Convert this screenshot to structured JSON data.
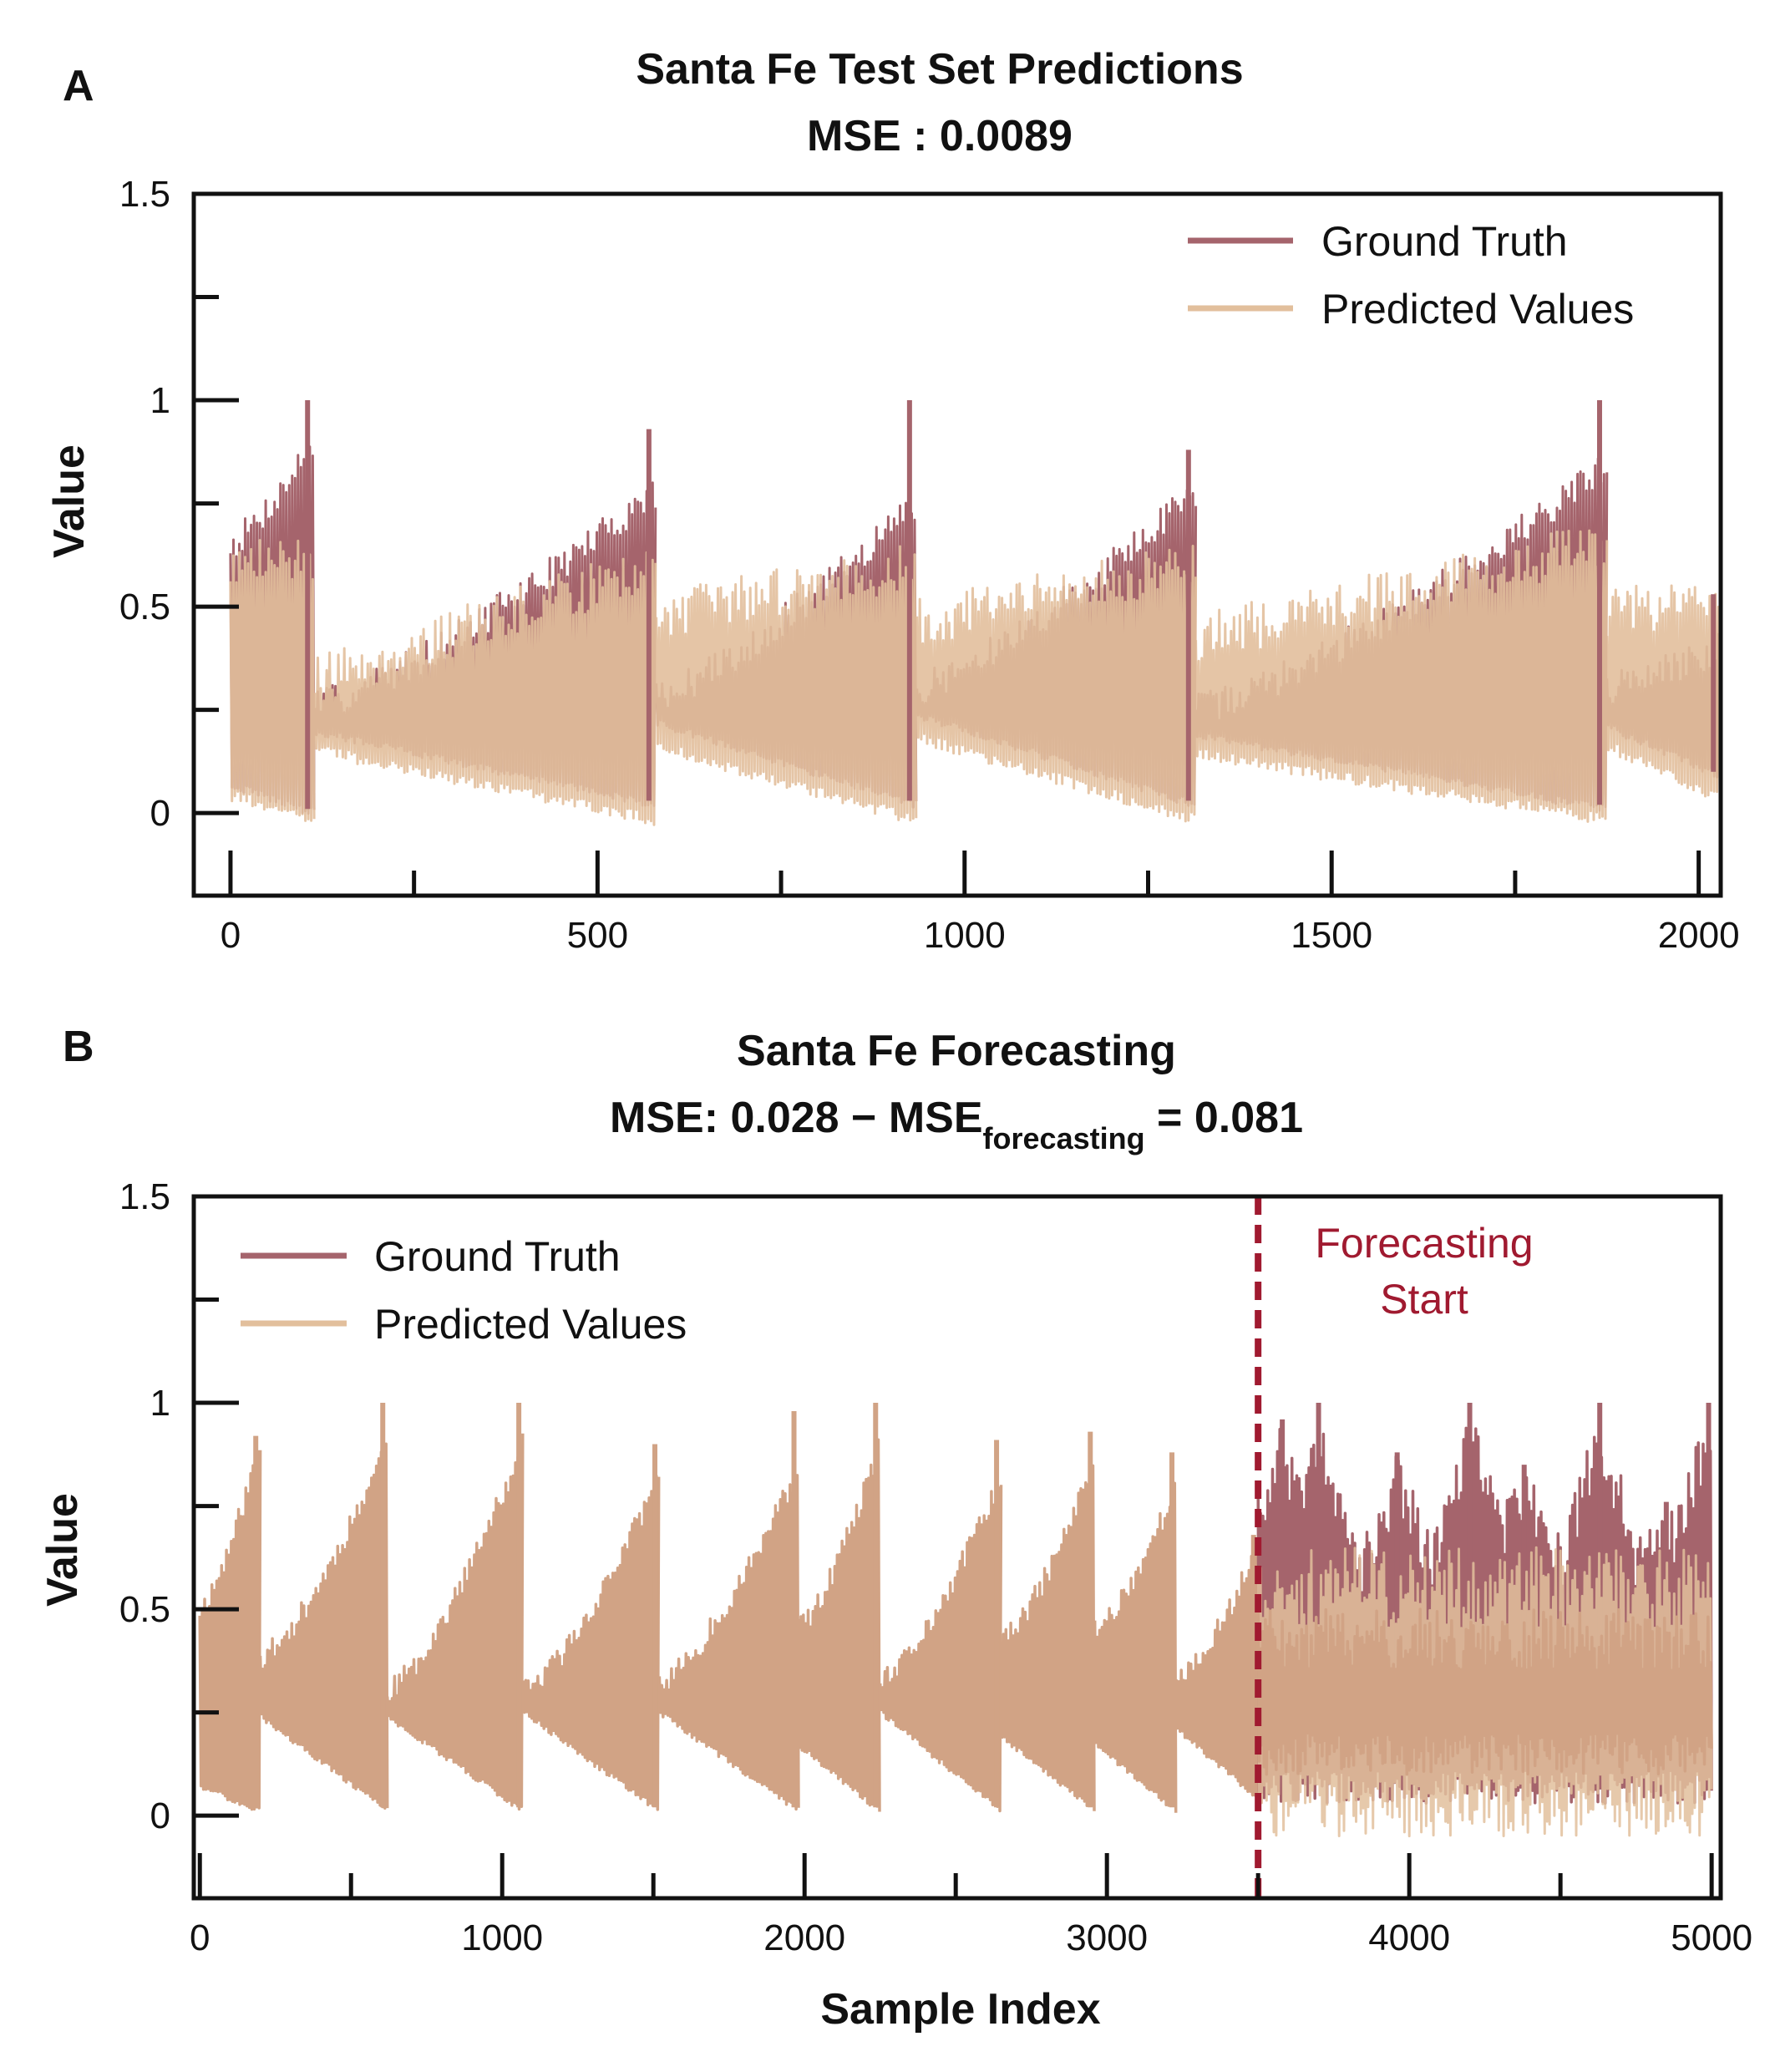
{
  "colors": {
    "ground_truth": "#a5646c",
    "predicted": "#e2bf9c",
    "overlap": "#d1a385",
    "forecast_line": "#a01a30",
    "axis": "#111111"
  },
  "chart_data": [
    {
      "panel": "A",
      "type": "line",
      "title": "Santa Fe Test Set Predictions",
      "subtitle": "MSE : 0.0089",
      "xlabel": "",
      "ylabel": "Value",
      "xlim": [
        -50,
        2030
      ],
      "ylim": [
        -0.2,
        1.5
      ],
      "xticks": [
        0,
        500,
        1000,
        1500,
        2000
      ],
      "xtick_labels": [
        "0",
        "500",
        "1000",
        "1500",
        "2000"
      ],
      "yticks": [
        0,
        0.5,
        1,
        1.5
      ],
      "ytick_labels": [
        "0",
        "0.5",
        "1",
        "1.5"
      ],
      "legend": "top-right",
      "grid": false,
      "series": [
        {
          "name": "Ground Truth",
          "kind": "ground_truth"
        },
        {
          "name": "Predicted Values",
          "kind": "predicted"
        }
      ],
      "n_samples": 2030,
      "collapse_points": [
        115,
        580,
        935,
        1315,
        1875
      ],
      "segment_envelopes": [
        {
          "x": [
            0,
            115
          ],
          "gt_peak": [
            0.65,
            0.9
          ],
          "gt_trough": [
            0.08,
            0.01
          ],
          "pred_peak": [
            0.6,
            0.62
          ],
          "pred_trough": [
            0.06,
            0.0
          ],
          "max": 1.0
        },
        {
          "x": [
            115,
            580
          ],
          "gt_peak": [
            0.26,
            0.78
          ],
          "gt_trough": [
            0.21,
            0.03
          ],
          "pred_peak": [
            0.32,
            0.6
          ],
          "pred_trough": [
            0.17,
            0.0
          ],
          "max": 0.93
        },
        {
          "x": [
            580,
            935
          ],
          "gt_peak": [
            0.28,
            0.75
          ],
          "gt_trough": [
            0.23,
            0.03
          ],
          "pred_peak": [
            0.48,
            0.6
          ],
          "pred_trough": [
            0.18,
            0.0
          ],
          "max": 1.0
        },
        {
          "x": [
            935,
            1315
          ],
          "gt_peak": [
            0.3,
            0.78
          ],
          "gt_trough": [
            0.25,
            0.03
          ],
          "pred_peak": [
            0.46,
            0.6
          ],
          "pred_trough": [
            0.2,
            0.0
          ],
          "max": 0.88
        },
        {
          "x": [
            1315,
            1875
          ],
          "gt_peak": [
            0.25,
            0.84
          ],
          "gt_trough": [
            0.2,
            0.02
          ],
          "pred_peak": [
            0.42,
            0.65
          ],
          "pred_trough": [
            0.16,
            0.0
          ],
          "max": 1.0
        },
        {
          "x": [
            1875,
            2030
          ],
          "gt_peak": [
            0.3,
            0.4
          ],
          "gt_trough": [
            0.22,
            0.1
          ],
          "pred_peak": [
            0.48,
            0.52
          ],
          "pred_trough": [
            0.18,
            0.05
          ],
          "max": 0.53
        }
      ]
    },
    {
      "panel": "B",
      "type": "line",
      "title": "Santa Fe Forecasting",
      "subtitle_prefix": "MSE: 0.028 − MSE",
      "subtitle_sub": "forecasting",
      "subtitle_suffix": " = 0.081",
      "xlabel": "Sample Index",
      "ylabel": "Value",
      "xlim": [
        -20,
        5030
      ],
      "ylim": [
        -0.2,
        1.5
      ],
      "xticks": [
        0,
        1000,
        2000,
        3000,
        4000,
        5000
      ],
      "xtick_labels": [
        "0",
        "1000",
        "2000",
        "3000",
        "4000",
        "5000"
      ],
      "yticks": [
        0,
        0.5,
        1,
        1.5
      ],
      "ytick_labels": [
        "0",
        "0.5",
        "1",
        "1.5"
      ],
      "legend": "top-left",
      "grid": false,
      "series": [
        {
          "name": "Ground Truth",
          "kind": "ground_truth"
        },
        {
          "name": "Predicted Values",
          "kind": "predicted"
        }
      ],
      "forecast_start": 3500,
      "annotation": [
        "Forecasting",
        "Start"
      ],
      "n_samples": 5000,
      "segment_envelopes": [
        {
          "x": [
            0,
            200
          ],
          "peak": [
            0.5,
            0.9
          ],
          "trough": [
            0.08,
            0.02
          ],
          "max": 0.92
        },
        {
          "x": [
            200,
            620
          ],
          "peak": [
            0.38,
            0.9
          ],
          "trough": [
            0.25,
            0.02
          ],
          "max": 1.0
        },
        {
          "x": [
            620,
            1070
          ],
          "peak": [
            0.3,
            0.9
          ],
          "trough": [
            0.25,
            0.02
          ],
          "max": 1.0
        },
        {
          "x": [
            1070,
            1520
          ],
          "peak": [
            0.3,
            0.82
          ],
          "trough": [
            0.26,
            0.02
          ],
          "max": 0.9
        },
        {
          "x": [
            1520,
            1980
          ],
          "peak": [
            0.32,
            0.84
          ],
          "trough": [
            0.26,
            0.02
          ],
          "max": 0.98
        },
        {
          "x": [
            1980,
            2250
          ],
          "peak": [
            0.45,
            0.9
          ],
          "trough": [
            0.18,
            0.02
          ],
          "max": 1.0
        },
        {
          "x": [
            2250,
            2650
          ],
          "peak": [
            0.32,
            0.82
          ],
          "trough": [
            0.26,
            0.02
          ],
          "max": 0.91
        },
        {
          "x": [
            2650,
            2960
          ],
          "peak": [
            0.42,
            0.86
          ],
          "trough": [
            0.2,
            0.02
          ],
          "max": 0.93
        },
        {
          "x": [
            2960,
            3230
          ],
          "peak": [
            0.45,
            0.8
          ],
          "trough": [
            0.18,
            0.02
          ],
          "max": 0.88
        },
        {
          "x": [
            3230,
            3500
          ],
          "peak": [
            0.32,
            0.65
          ],
          "trough": [
            0.22,
            0.05
          ],
          "max": 0.68
        }
      ],
      "forecast_gt_peaks": [
        {
          "x": 3580,
          "y": 0.96
        },
        {
          "x": 3700,
          "y": 1.0
        },
        {
          "x": 3960,
          "y": 0.88
        },
        {
          "x": 4200,
          "y": 1.0
        },
        {
          "x": 4380,
          "y": 0.85
        },
        {
          "x": 4630,
          "y": 1.0
        },
        {
          "x": 4850,
          "y": 0.76
        },
        {
          "x": 4990,
          "y": 1.0
        }
      ]
    }
  ],
  "legend_labels": {
    "ground_truth": "Ground Truth",
    "predicted": "Predicted Values"
  }
}
